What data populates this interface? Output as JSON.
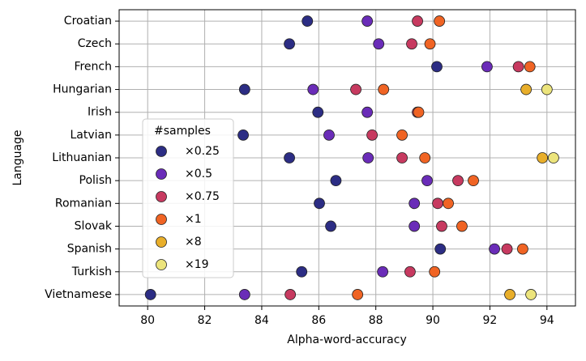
{
  "chart_data": {
    "type": "dot",
    "x_label": "Alpha-word-accuracy",
    "y_label": "Language",
    "categories": [
      "Croatian",
      "Czech",
      "French",
      "Hungarian",
      "Irish",
      "Latvian",
      "Lithuanian",
      "Polish",
      "Romanian",
      "Slovak",
      "Spanish",
      "Turkish",
      "Vietnamese"
    ],
    "series": [
      {
        "name": "×0.25",
        "color": "#2c2d84",
        "values": [
          85.6,
          84.97,
          90.14,
          83.4,
          85.97,
          83.35,
          84.97,
          86.6,
          86.02,
          86.42,
          90.26,
          85.4,
          80.1
        ]
      },
      {
        "name": "×0.5",
        "color": "#6a2cb8",
        "values": [
          87.7,
          88.1,
          91.9,
          85.8,
          87.7,
          86.36,
          87.73,
          89.8,
          89.35,
          89.35,
          92.16,
          88.24,
          83.4
        ]
      },
      {
        "name": "×0.75",
        "color": "#c73a60",
        "values": [
          89.46,
          89.26,
          93.0,
          87.3,
          89.46,
          87.87,
          88.92,
          90.88,
          90.17,
          90.31,
          92.6,
          89.2,
          85.0
        ]
      },
      {
        "name": "×1",
        "color": "#f06424",
        "values": [
          90.23,
          89.9,
          93.4,
          88.27,
          89.5,
          88.92,
          89.72,
          91.42,
          90.54,
          91.02,
          93.15,
          90.06,
          87.36
        ]
      },
      {
        "name": "×8",
        "color": "#e8ae2a",
        "values": [
          null,
          null,
          null,
          93.27,
          null,
          null,
          93.84,
          null,
          null,
          null,
          null,
          null,
          92.7
        ]
      },
      {
        "name": "×19",
        "color": "#ece47c",
        "values": [
          null,
          null,
          null,
          94.0,
          null,
          null,
          94.23,
          null,
          null,
          null,
          null,
          null,
          93.44
        ]
      }
    ],
    "legend_title": "#samples",
    "legend": "center left",
    "xlim": [
      79,
      95
    ],
    "xticks": [
      80,
      82,
      84,
      86,
      88,
      90,
      92,
      94
    ],
    "grid": true
  }
}
